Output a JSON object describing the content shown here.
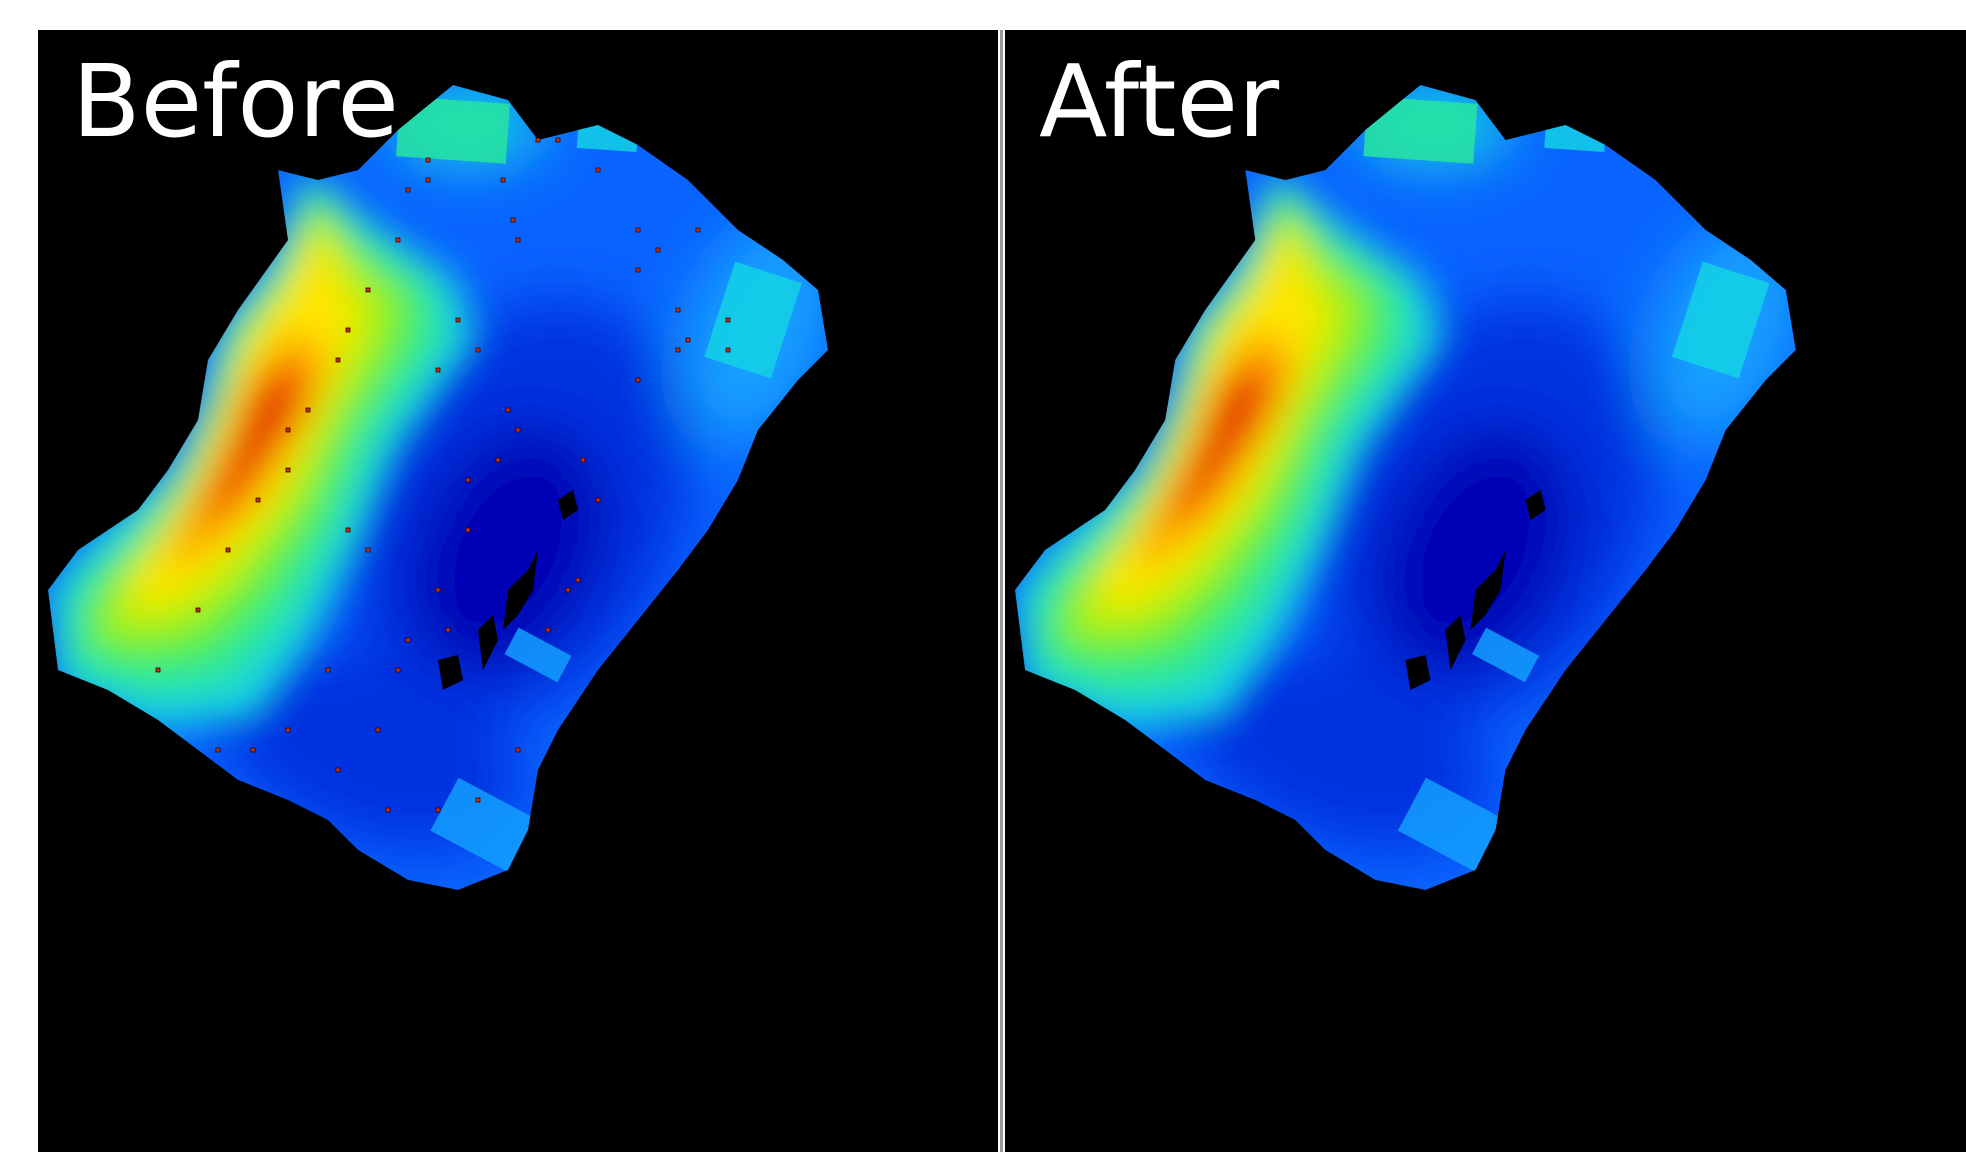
{
  "panels": [
    {
      "id": "before",
      "label": "Before",
      "shows_outlier_markers": true
    },
    {
      "id": "after",
      "label": "After",
      "shows_outlier_markers": false
    }
  ],
  "colors": {
    "background": "#000000",
    "divider": "#9a9a9a",
    "label": "#ffffff",
    "colormap": [
      "#0000b4",
      "#0030e0",
      "#0a64ff",
      "#14a0ff",
      "#14d2e6",
      "#28e6a0",
      "#50f03c",
      "#b4f000",
      "#ffe600",
      "#ffa000",
      "#f04600",
      "#e02800"
    ],
    "outlier_marker": "#c83214"
  }
}
